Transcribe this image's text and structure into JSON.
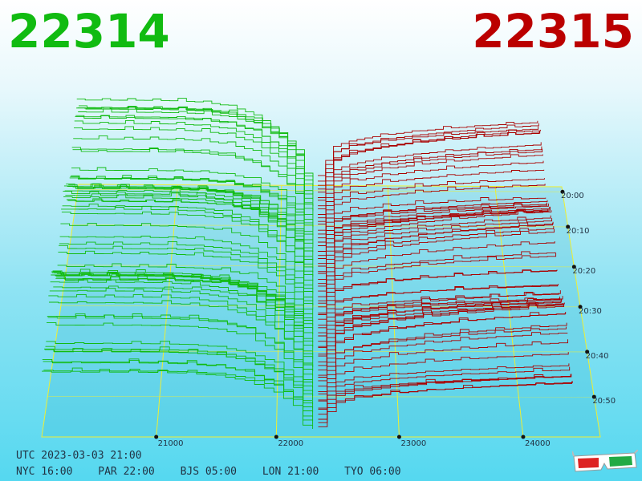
{
  "bid_price": "22314",
  "ask_price": "22315",
  "clocks": {
    "utc": "UTC 2023-03-03 21:00",
    "zones": [
      "NYC 16:00",
      "PAR 22:00",
      "BJS 05:00",
      "LON 21:00",
      "TYO 06:00"
    ]
  },
  "colors": {
    "bid": "#11bb11",
    "ask": "#aa0000",
    "grid": "#eeee33",
    "background_top": "#ffffff",
    "background_bottom": "#55d8f0"
  },
  "icons": [
    "3d-glasses-icon"
  ],
  "chart_data": {
    "type": "3d depth chart",
    "x_axis": {
      "ticks": [
        21000,
        22000,
        23000,
        24000
      ],
      "labels": [
        "21000",
        "22000",
        "23000",
        "24000"
      ]
    },
    "y_axis": {
      "ticks": [
        "20:00",
        "20:10",
        "20:20",
        "20:30",
        "20:40",
        "20:50"
      ]
    },
    "series": [
      {
        "name": "22314",
        "side": "bid",
        "color": "#11bb11"
      },
      {
        "name": "22315",
        "side": "ask",
        "color": "#aa0000"
      }
    ],
    "grid": true
  }
}
